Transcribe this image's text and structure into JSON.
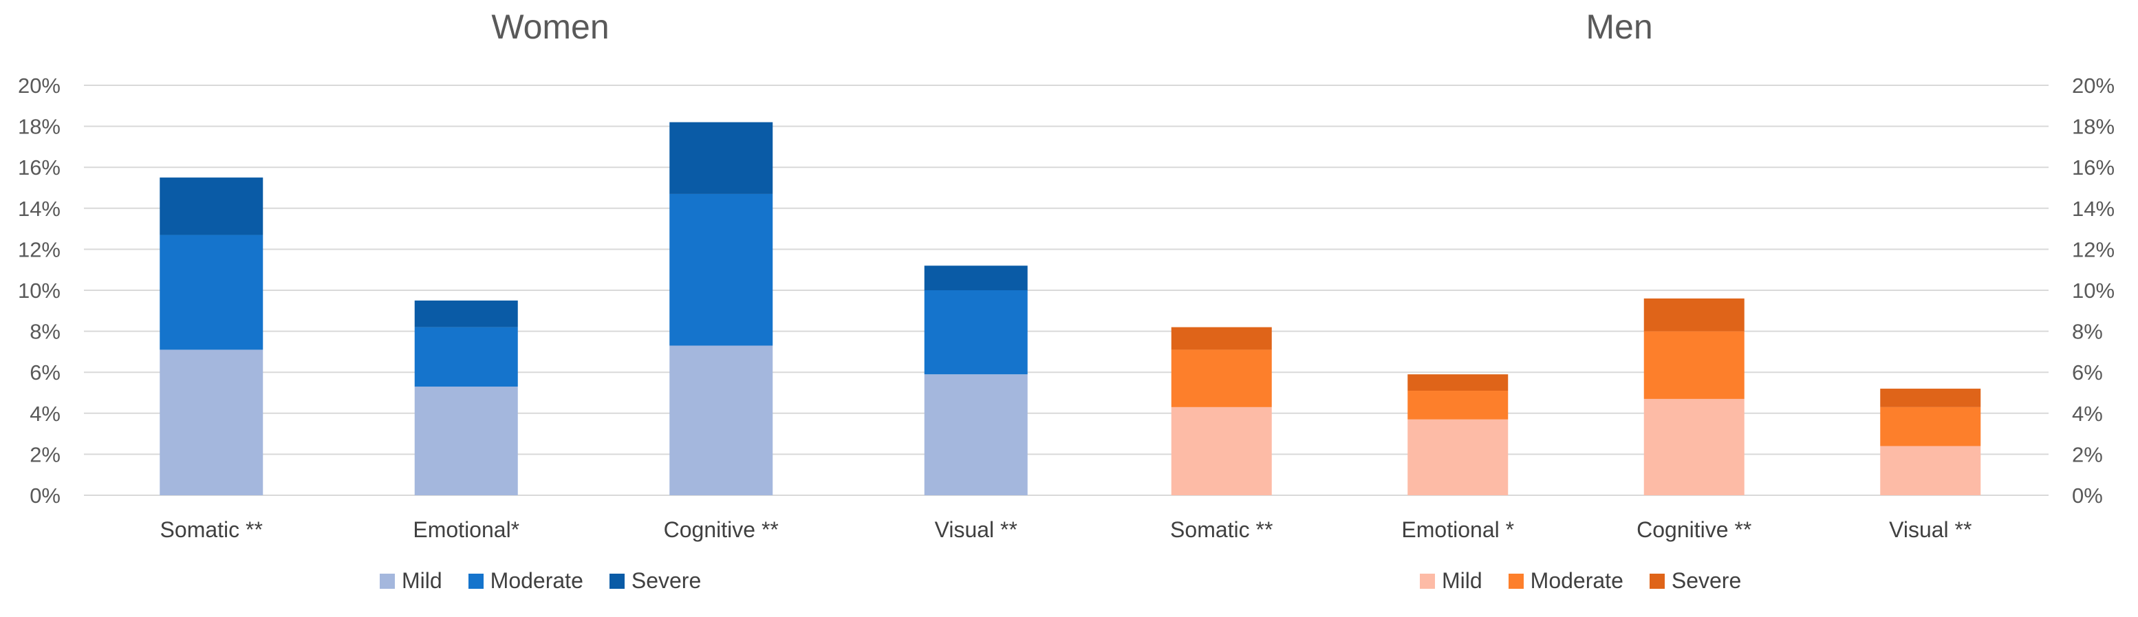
{
  "colors": {
    "women": {
      "Mild": "#a4b7dd",
      "Moderate": "#1574cc",
      "Severe": "#0a5ba6"
    },
    "men": {
      "Mild": "#fdbba6",
      "Moderate": "#fd7f2b",
      "Severe": "#df6419"
    },
    "axis_text": "#595959",
    "grid": "#d9d9d9"
  },
  "chart_data": [
    {
      "type": "bar",
      "stacked": true,
      "title": "Women",
      "categories": [
        "Somatic **",
        "Emotional*",
        "Cognitive **",
        "Visual **"
      ],
      "series": [
        {
          "name": "Mild",
          "values": [
            7.1,
            5.3,
            7.3,
            5.9
          ]
        },
        {
          "name": "Moderate",
          "values": [
            5.6,
            2.9,
            7.4,
            4.1
          ]
        },
        {
          "name": "Severe",
          "values": [
            2.8,
            1.3,
            3.5,
            1.2
          ]
        }
      ],
      "ylim": [
        0,
        20
      ],
      "yticks": [
        "0%",
        "2%",
        "4%",
        "6%",
        "8%",
        "10%",
        "12%",
        "14%",
        "16%",
        "18%",
        "20%"
      ],
      "y_axis_side": "left",
      "grid": true,
      "legend": "bottom"
    },
    {
      "type": "bar",
      "stacked": true,
      "title": "Men",
      "categories": [
        "Somatic **",
        "Emotional *",
        "Cognitive **",
        "Visual **"
      ],
      "series": [
        {
          "name": "Mild",
          "values": [
            4.3,
            3.7,
            4.7,
            2.4
          ]
        },
        {
          "name": "Moderate",
          "values": [
            2.8,
            1.4,
            3.3,
            1.9
          ]
        },
        {
          "name": "Severe",
          "values": [
            1.1,
            0.8,
            1.6,
            0.9
          ]
        }
      ],
      "ylim": [
        0,
        20
      ],
      "yticks": [
        "0%",
        "2%",
        "4%",
        "6%",
        "8%",
        "10%",
        "12%",
        "14%",
        "16%",
        "18%",
        "20%"
      ],
      "y_axis_side": "right",
      "grid": true,
      "legend": "bottom"
    }
  ]
}
